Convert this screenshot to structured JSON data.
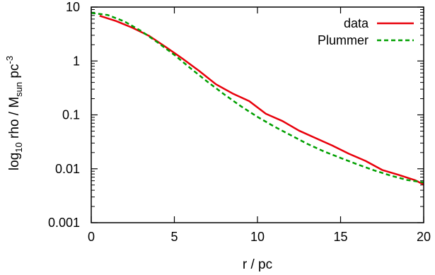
{
  "chart_data": {
    "type": "line",
    "title": "",
    "xlabel": "r / pc",
    "ylabel": {
      "part1": "log",
      "sub1": "10",
      "part2": " rho / M",
      "sub2": "sun",
      "part3": " pc",
      "sup": "-3"
    },
    "xlim": [
      0,
      20
    ],
    "ylim": [
      0.001,
      10
    ],
    "yscale": "log",
    "grid": false,
    "legend_position": "top-right",
    "x_ticks": [
      0,
      5,
      10,
      15,
      20
    ],
    "x_tick_labels": [
      "0",
      "5",
      "10",
      "15",
      "20"
    ],
    "y_ticks": [
      0.001,
      0.01,
      0.1,
      1,
      10
    ],
    "y_tick_labels": [
      "0.001",
      "0.01",
      "0.1",
      "1",
      "10"
    ],
    "series": [
      {
        "name": "data",
        "color": "#e8000b",
        "style": "solid",
        "x": [
          0.5,
          1.5,
          2.5,
          3.5,
          4.5,
          5.5,
          6.5,
          7.5,
          8.5,
          9.5,
          10.5,
          11.5,
          12.5,
          13.5,
          14.5,
          15.5,
          16.5,
          17.5,
          18.5,
          19.5,
          20
        ],
        "y": [
          6.9,
          5.5,
          4.1,
          2.9,
          1.8,
          1.1,
          0.65,
          0.37,
          0.25,
          0.18,
          0.105,
          0.077,
          0.051,
          0.037,
          0.027,
          0.019,
          0.014,
          0.0095,
          0.0077,
          0.0061,
          0.0051
        ]
      },
      {
        "name": "Plummer",
        "color": "#00a000",
        "style": "dashed",
        "x": [
          0,
          1,
          2,
          3,
          4,
          5,
          6,
          7,
          8,
          9,
          10,
          11,
          12,
          13,
          14,
          15,
          16,
          17,
          18,
          19,
          20
        ],
        "y": [
          7.8,
          7.1,
          5.4,
          3.6,
          2.2,
          1.3,
          0.72,
          0.41,
          0.24,
          0.145,
          0.092,
          0.061,
          0.042,
          0.029,
          0.021,
          0.0159,
          0.0121,
          0.0094,
          0.0075,
          0.0062,
          0.0056
        ]
      }
    ]
  }
}
